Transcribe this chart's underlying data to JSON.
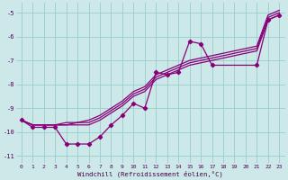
{
  "xlabel": "Windchill (Refroidissement éolien,°C)",
  "bg_color": "#cce8e8",
  "grid_color": "#99cccc",
  "line_color": "#880077",
  "xlim": [
    -0.5,
    23.5
  ],
  "ylim": [
    -11.3,
    -4.6
  ],
  "xticks": [
    0,
    1,
    2,
    3,
    4,
    5,
    6,
    7,
    8,
    9,
    10,
    11,
    12,
    13,
    14,
    15,
    16,
    17,
    18,
    19,
    20,
    21,
    22,
    23
  ],
  "yticks": [
    -11,
    -10,
    -9,
    -8,
    -7,
    -6,
    -5
  ],
  "line1_x": [
    0,
    1,
    2,
    3,
    4,
    5,
    6,
    7,
    8,
    9,
    10,
    11,
    12,
    13,
    14,
    15,
    16,
    17,
    18,
    19,
    20,
    21,
    22,
    23
  ],
  "line1_y": [
    -9.5,
    -9.7,
    -9.7,
    -9.7,
    -9.7,
    -9.7,
    -9.7,
    -9.5,
    -9.2,
    -8.9,
    -8.5,
    -8.3,
    -7.8,
    -7.6,
    -7.4,
    -7.2,
    -7.1,
    -7.0,
    -6.9,
    -6.8,
    -6.7,
    -6.6,
    -5.3,
    -5.1
  ],
  "line2_x": [
    0,
    1,
    2,
    3,
    4,
    5,
    6,
    7,
    8,
    9,
    10,
    11,
    12,
    13,
    14,
    15,
    16,
    17,
    18,
    19,
    20,
    21,
    22,
    23
  ],
  "line2_y": [
    -9.5,
    -9.7,
    -9.7,
    -9.7,
    -9.7,
    -9.6,
    -9.6,
    -9.4,
    -9.1,
    -8.8,
    -8.4,
    -8.2,
    -7.7,
    -7.5,
    -7.3,
    -7.1,
    -7.0,
    -6.9,
    -6.8,
    -6.7,
    -6.6,
    -6.5,
    -5.2,
    -5.0
  ],
  "line3_x": [
    0,
    1,
    2,
    3,
    4,
    5,
    6,
    7,
    8,
    9,
    10,
    11,
    12,
    13,
    14,
    15,
    16,
    17,
    18,
    19,
    20,
    21,
    22,
    23
  ],
  "line3_y": [
    -9.5,
    -9.7,
    -9.7,
    -9.7,
    -9.6,
    -9.6,
    -9.5,
    -9.3,
    -9.0,
    -8.7,
    -8.3,
    -8.1,
    -7.6,
    -7.4,
    -7.2,
    -7.0,
    -6.9,
    -6.8,
    -6.7,
    -6.6,
    -6.5,
    -6.4,
    -5.1,
    -4.9
  ],
  "marked_x": [
    0,
    1,
    2,
    3,
    4,
    5,
    6,
    7,
    8,
    9,
    10,
    11,
    12,
    13,
    14,
    15,
    16,
    17,
    21,
    22,
    23
  ],
  "marked_y": [
    -9.5,
    -9.8,
    -9.8,
    -9.8,
    -10.5,
    -10.5,
    -10.5,
    -10.2,
    -9.7,
    -9.3,
    -8.8,
    -9.0,
    -7.5,
    -7.6,
    -7.5,
    -6.2,
    -6.3,
    -7.2,
    -7.2,
    -5.3,
    -5.1
  ]
}
